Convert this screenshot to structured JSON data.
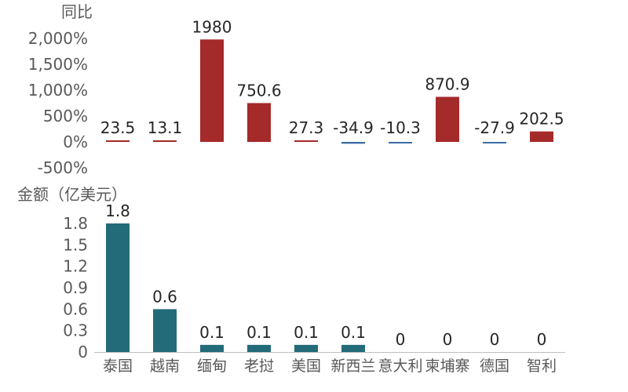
{
  "chart_data": [
    {
      "type": "bar",
      "ylabel": "同比",
      "categories": [
        "泰国",
        "越南",
        "缅甸",
        "老挝",
        "美国",
        "新西兰",
        "意大利",
        "柬埔寨",
        "德国",
        "智利"
      ],
      "values": [
        23.5,
        13.1,
        1980,
        750.6,
        27.3,
        -34.9,
        -10.3,
        870.9,
        -27.9,
        202.5
      ],
      "data_labels": [
        "23.5",
        "13.1",
        "1980",
        "750.6",
        "27.3",
        "-34.9",
        "-10.3",
        "870.9",
        "-27.9",
        "202.5"
      ],
      "ylim": [
        -500,
        2000
      ],
      "yticks": [
        "2,000%",
        "1,500%",
        "1,000%",
        "500%",
        "0%",
        "-500%"
      ],
      "ytick_values": [
        2000,
        1500,
        1000,
        500,
        0,
        -500
      ],
      "colors": {
        "positive": "#a52a2a",
        "negative": "#3b6ba5"
      },
      "grid": false,
      "legend": "none"
    },
    {
      "type": "bar",
      "ylabel": "金额（亿美元）",
      "categories": [
        "泰国",
        "越南",
        "缅甸",
        "老挝",
        "美国",
        "新西兰",
        "意大利",
        "柬埔寨",
        "德国",
        "智利"
      ],
      "values": [
        1.8,
        0.6,
        0.1,
        0.1,
        0.1,
        0.1,
        0,
        0,
        0,
        0
      ],
      "data_labels": [
        "1.8",
        "0.6",
        "0.1",
        "0.1",
        "0.1",
        "0.1",
        "0",
        "0",
        "0",
        "0"
      ],
      "ylim": [
        0,
        1.8
      ],
      "yticks": [
        "1.8",
        "1.5",
        "1.2",
        "0.9",
        "0.6",
        "0.3",
        "0"
      ],
      "ytick_values": [
        1.8,
        1.5,
        1.2,
        0.9,
        0.6,
        0.3,
        0
      ],
      "colors": {
        "bar": "#236b79",
        "axis": "#bfbfbf"
      },
      "grid": false,
      "legend": "none"
    }
  ]
}
